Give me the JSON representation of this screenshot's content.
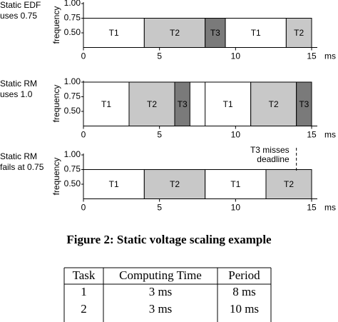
{
  "figure": {
    "x_unit": "ms",
    "ylabel": "frequency",
    "xticks": [
      0,
      5,
      10,
      15
    ],
    "yticks": [
      {
        "value": 1.0,
        "label": "1.00"
      },
      {
        "value": 0.75,
        "label": "0.75"
      },
      {
        "value": 0.5,
        "label": "0.50"
      }
    ],
    "panels": [
      {
        "label": [
          "Static EDF",
          "uses 0.75"
        ],
        "level": 0.75,
        "blocks": [
          {
            "task": "T1",
            "start": 0,
            "end": 4,
            "level": 0.75
          },
          {
            "task": "T2",
            "start": 4,
            "end": 8,
            "level": 0.75
          },
          {
            "task": "T3",
            "start": 8,
            "end": 9.33,
            "level": 0.75
          },
          {
            "task": "T1",
            "start": 9.33,
            "end": 13.33,
            "level": 0.75
          },
          {
            "task": "T2",
            "start": 13.33,
            "end": 15,
            "level": 0.75
          }
        ]
      },
      {
        "label": [
          "Static RM",
          "uses 1.0"
        ],
        "level": 1.0,
        "blocks": [
          {
            "task": "T1",
            "start": 0,
            "end": 3,
            "level": 1.0
          },
          {
            "task": "T2",
            "start": 3,
            "end": 6,
            "level": 1.0
          },
          {
            "task": "T3",
            "start": 6,
            "end": 7,
            "level": 1.0
          },
          {
            "task": "T1",
            "start": 8,
            "end": 11,
            "level": 1.0
          },
          {
            "task": "T2",
            "start": 11,
            "end": 14,
            "level": 1.0
          },
          {
            "task": "T3",
            "start": 14,
            "end": 15,
            "level": 1.0
          }
        ]
      },
      {
        "label": [
          "Static RM",
          "fails at 0.75"
        ],
        "level": 0.75,
        "annotation": [
          "T3 misses",
          "deadline"
        ],
        "deadline": 14,
        "blocks": [
          {
            "task": "T1",
            "start": 0,
            "end": 4,
            "level": 0.75
          },
          {
            "task": "T2",
            "start": 4,
            "end": 8,
            "level": 0.75
          },
          {
            "task": "T1",
            "start": 8,
            "end": 12,
            "level": 0.75
          },
          {
            "task": "T2",
            "start": 12,
            "end": 15,
            "level": 0.75
          }
        ]
      }
    ],
    "task_colors": {
      "T1": "#ffffff",
      "T2": "#c8c8c8",
      "T3": "#7a7a7a"
    },
    "caption": "Figure 2: Static voltage scaling example"
  },
  "table": {
    "header": [
      "Task",
      "Computing Time",
      "Period"
    ],
    "rows": [
      [
        "1",
        "3 ms",
        "8 ms"
      ],
      [
        "2",
        "3 ms",
        "10 ms"
      ]
    ]
  }
}
